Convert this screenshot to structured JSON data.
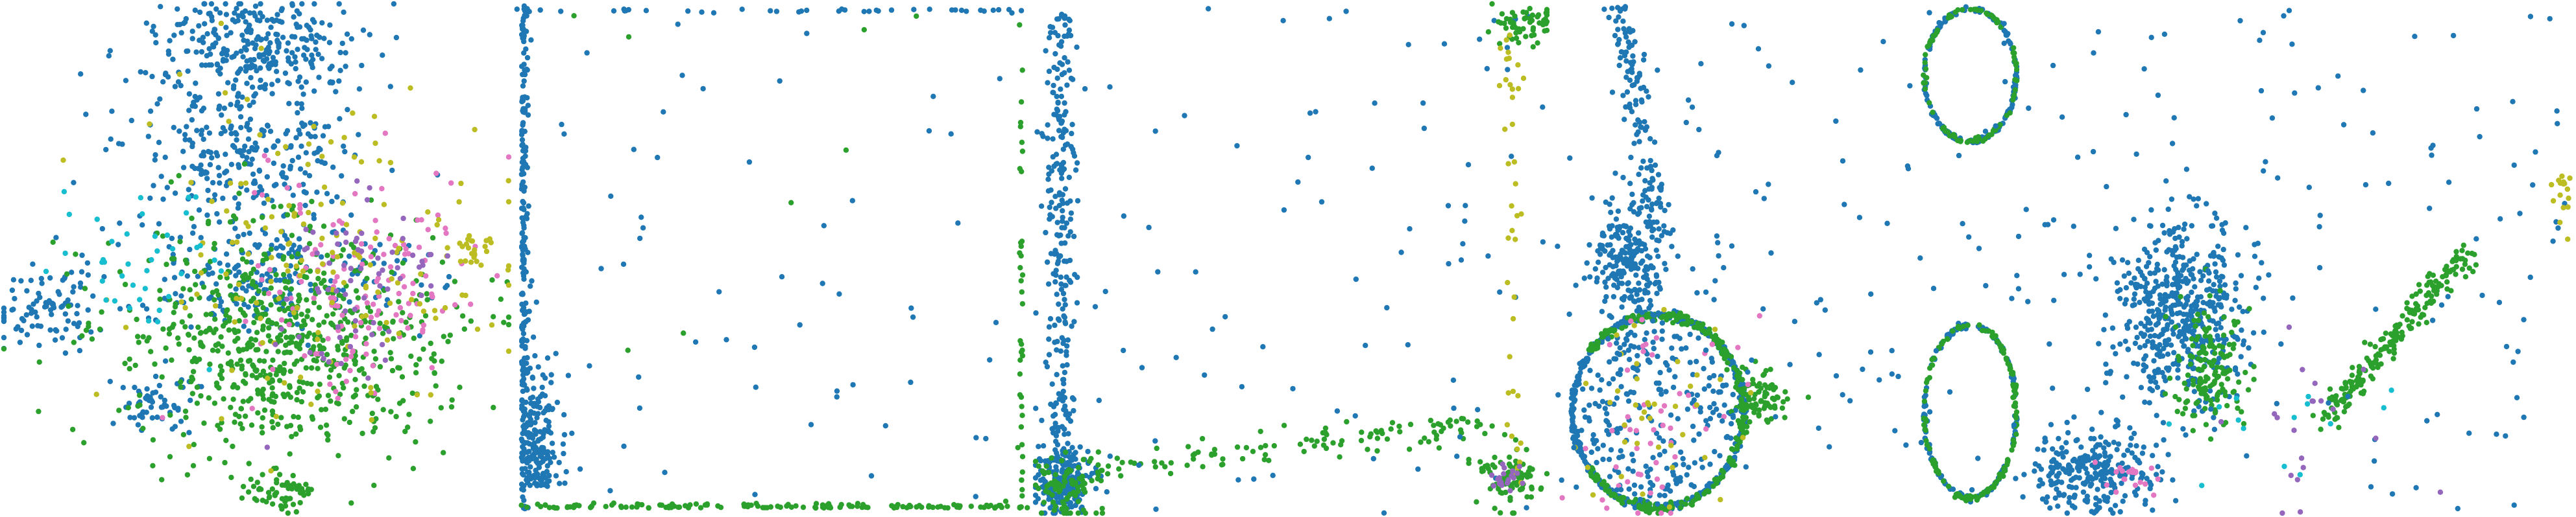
{
  "figure": {
    "title": "",
    "panel_count": 5
  },
  "colors": {
    "blue": "#1f77b4",
    "green": "#2ca02c",
    "pink": "#e377c2",
    "olive": "#bcbd22",
    "cyan": "#17becf",
    "purple": "#9467bd"
  },
  "chart_data": [
    {
      "type": "scatter",
      "title": "",
      "xlabel": "",
      "ylabel": "",
      "axes_visible": false,
      "grid": false,
      "legend": "none",
      "clusters": [
        {
          "color": "blue",
          "center": [
            0.5,
            0.08
          ],
          "spread": [
            0.1,
            0.05
          ],
          "n": 280
        },
        {
          "color": "blue",
          "center": [
            0.48,
            0.28
          ],
          "spread": [
            0.12,
            0.07
          ],
          "n": 280
        },
        {
          "color": "blue",
          "center": [
            0.5,
            0.53
          ],
          "spread": [
            0.16,
            0.06
          ],
          "n": 220
        },
        {
          "color": "blue",
          "center": [
            0.08,
            0.6
          ],
          "spread": [
            0.05,
            0.04
          ],
          "n": 90
        },
        {
          "color": "blue",
          "center": [
            0.3,
            0.78
          ],
          "spread": [
            0.04,
            0.03
          ],
          "n": 60
        },
        {
          "color": "green",
          "center": [
            0.55,
            0.66
          ],
          "spread": [
            0.16,
            0.11
          ],
          "n": 700
        },
        {
          "color": "green",
          "center": [
            0.55,
            0.96
          ],
          "spread": [
            0.03,
            0.02
          ],
          "n": 60
        },
        {
          "color": "pink",
          "center": [
            0.72,
            0.56
          ],
          "spread": [
            0.12,
            0.12
          ],
          "n": 140
        },
        {
          "color": "olive",
          "center": [
            0.62,
            0.52
          ],
          "spread": [
            0.18,
            0.16
          ],
          "n": 160
        },
        {
          "color": "olive",
          "center": [
            0.94,
            0.48
          ],
          "spread": [
            0.02,
            0.02
          ],
          "n": 20
        },
        {
          "color": "cyan",
          "center": [
            0.28,
            0.5
          ],
          "spread": [
            0.08,
            0.08
          ],
          "n": 40
        },
        {
          "color": "purple",
          "center": [
            0.68,
            0.55
          ],
          "spread": [
            0.08,
            0.09
          ],
          "n": 70
        }
      ]
    },
    {
      "type": "scatter",
      "title": "",
      "xlabel": "",
      "ylabel": "",
      "axes_visible": false,
      "grid": false,
      "legend": "none",
      "clusters": [
        {
          "color": "blue",
          "shape": "edge-left",
          "n": 240
        },
        {
          "color": "blue",
          "shape": "edge-top",
          "n": 40
        },
        {
          "color": "green",
          "shape": "edge-bottom",
          "n": 140
        },
        {
          "color": "green",
          "shape": "edge-right",
          "n": 40
        },
        {
          "color": "blue",
          "shape": "corner-bottom-left",
          "n": 160
        },
        {
          "color": "blue",
          "shape": "uniform",
          "n": 60
        },
        {
          "color": "green",
          "shape": "uniform",
          "n": 8
        }
      ]
    },
    {
      "type": "scatter",
      "title": "",
      "xlabel": "",
      "ylabel": "",
      "axes_visible": false,
      "grid": false,
      "legend": "none",
      "clusters": [
        {
          "color": "blue",
          "shape": "column-left",
          "n": 260
        },
        {
          "color": "blue",
          "center": [
            0.05,
            0.94
          ],
          "spread": [
            0.03,
            0.03
          ],
          "n": 200
        },
        {
          "color": "green",
          "center": [
            0.06,
            0.95
          ],
          "spread": [
            0.03,
            0.03
          ],
          "n": 80
        },
        {
          "color": "green",
          "shape": "curve-bottom",
          "n": 120
        },
        {
          "color": "blue",
          "shape": "uniform",
          "n": 90
        },
        {
          "color": "green",
          "center": [
            0.96,
            0.04
          ],
          "spread": [
            0.03,
            0.02
          ],
          "n": 60
        },
        {
          "color": "green",
          "center": [
            0.93,
            0.93
          ],
          "spread": [
            0.03,
            0.03
          ],
          "n": 90
        },
        {
          "color": "olive",
          "shape": "column-right",
          "n": 40
        },
        {
          "color": "purple",
          "center": [
            0.92,
            0.93
          ],
          "spread": [
            0.02,
            0.02
          ],
          "n": 20
        }
      ]
    },
    {
      "type": "scatter",
      "title": "",
      "xlabel": "",
      "ylabel": "",
      "axes_visible": false,
      "grid": false,
      "legend": "none",
      "clusters": [
        {
          "color": "blue",
          "shape": "ring",
          "center": [
            0.29,
            0.8
          ],
          "radius": [
            0.24,
            0.19
          ],
          "n": 500
        },
        {
          "color": "green",
          "shape": "ring-arc-right",
          "center": [
            0.29,
            0.8
          ],
          "radius": [
            0.24,
            0.19
          ],
          "n": 260
        },
        {
          "color": "blue",
          "shape": "ring-fill",
          "center": [
            0.29,
            0.8
          ],
          "radius": [
            0.22,
            0.17
          ],
          "n": 220
        },
        {
          "color": "blue",
          "center": [
            0.21,
            0.5
          ],
          "spread": [
            0.05,
            0.06
          ],
          "n": 240
        },
        {
          "color": "blue",
          "shape": "streak-top",
          "n": 120
        },
        {
          "color": "green",
          "center": [
            0.57,
            0.77
          ],
          "spread": [
            0.04,
            0.03
          ],
          "n": 90
        },
        {
          "color": "pink",
          "center": [
            0.29,
            0.82
          ],
          "spread": [
            0.12,
            0.1
          ],
          "n": 50
        },
        {
          "color": "olive",
          "center": [
            0.29,
            0.82
          ],
          "spread": [
            0.12,
            0.1
          ],
          "n": 40
        },
        {
          "color": "blue",
          "shape": "uniform",
          "n": 100
        }
      ]
    },
    {
      "type": "scatter",
      "title": "",
      "xlabel": "",
      "ylabel": "",
      "axes_visible": false,
      "grid": false,
      "legend": "none",
      "clusters": [
        {
          "color": "blue",
          "shape": "circle-top",
          "center": [
            0.08,
            0.14
          ],
          "radius": [
            0.07,
            0.13
          ],
          "n": 160
        },
        {
          "color": "green",
          "shape": "circle-top",
          "center": [
            0.08,
            0.14
          ],
          "radius": [
            0.07,
            0.13
          ],
          "n": 90
        },
        {
          "color": "blue",
          "shape": "circle-mid",
          "center": [
            0.08,
            0.8
          ],
          "radius": [
            0.07,
            0.17
          ],
          "n": 160
        },
        {
          "color": "green",
          "shape": "circle-mid",
          "center": [
            0.08,
            0.8
          ],
          "radius": [
            0.07,
            0.17
          ],
          "n": 140
        },
        {
          "color": "blue",
          "center": [
            0.4,
            0.6
          ],
          "spread": [
            0.05,
            0.09
          ],
          "n": 520
        },
        {
          "color": "blue",
          "center": [
            0.27,
            0.92
          ],
          "spread": [
            0.05,
            0.04
          ],
          "n": 260
        },
        {
          "color": "green",
          "shape": "arc-right",
          "n": 220
        },
        {
          "color": "green",
          "center": [
            0.45,
            0.72
          ],
          "spread": [
            0.03,
            0.06
          ],
          "n": 150
        },
        {
          "color": "blue",
          "shape": "uniform",
          "n": 150
        },
        {
          "color": "pink",
          "center": [
            0.32,
            0.93
          ],
          "spread": [
            0.03,
            0.02
          ],
          "n": 20
        },
        {
          "color": "olive",
          "center": [
            0.99,
            0.38
          ],
          "spread": [
            0.01,
            0.03
          ],
          "n": 16
        },
        {
          "color": "purple",
          "center": [
            0.6,
            0.82
          ],
          "spread": [
            0.08,
            0.08
          ],
          "n": 20
        },
        {
          "color": "cyan",
          "center": [
            0.6,
            0.82
          ],
          "spread": [
            0.08,
            0.08
          ],
          "n": 14
        }
      ]
    }
  ]
}
